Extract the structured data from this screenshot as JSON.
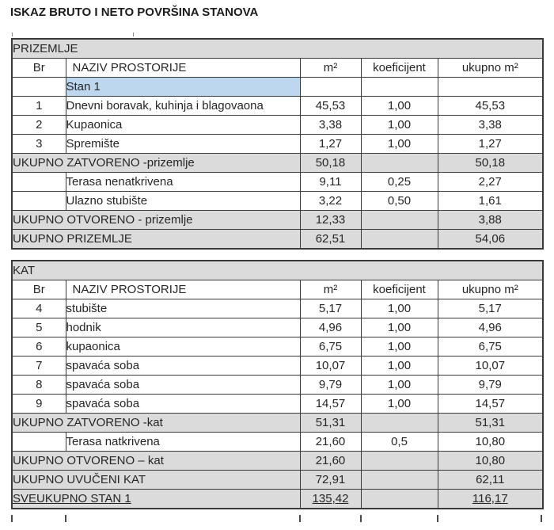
{
  "page_title": "ISKAZ BRUTO I NETO POVRŠINA STANOVA",
  "columns": [
    "Br",
    "NAZIV PROSTORIJE",
    "m²",
    "koeficijent",
    "ukupno m²"
  ],
  "colors": {
    "section_and_total_fill": "#dbdbdb",
    "highlight_fill": "#bdd7ee",
    "border": "#3a3a3a",
    "text": "#262626"
  },
  "tables": [
    {
      "section": "PRIZEMLJE",
      "rows": [
        {
          "type": "highlight",
          "br": "",
          "name": "Stan 1",
          "m2": "",
          "koef": "",
          "ukupno": ""
        },
        {
          "type": "item",
          "br": "1",
          "name": "Dnevni boravak, kuhinja i blagovaona",
          "m2": "45,53",
          "koef": "1,00",
          "ukupno": "45,53"
        },
        {
          "type": "item",
          "br": "2",
          "name": "Kupaonica",
          "m2": "3,38",
          "koef": "1,00",
          "ukupno": "3,38"
        },
        {
          "type": "item",
          "br": "3",
          "name": "Spremište",
          "m2": "1,27",
          "koef": "1,00",
          "ukupno": "1,27"
        },
        {
          "type": "total",
          "br": "",
          "name": "UKUPNO ZATVORENO -prizemlje",
          "m2": "50,18",
          "koef": "",
          "ukupno": "50,18"
        },
        {
          "type": "item",
          "br": "",
          "name": "Terasa nenatkrivena",
          "m2": "9,11",
          "koef": "0,25",
          "ukupno": "2,27"
        },
        {
          "type": "item",
          "br": "",
          "name": "Ulazno stubište",
          "m2": "3,22",
          "koef": "0,50",
          "ukupno": "1,61"
        },
        {
          "type": "total",
          "br": "",
          "name": "UKUPNO OTVORENO - prizemlje",
          "m2": "12,33",
          "koef": "",
          "ukupno": "3,88"
        },
        {
          "type": "total",
          "br": "",
          "name": "UKUPNO PRIZEMLJE",
          "m2": "62,51",
          "koef": "",
          "ukupno": "54,06"
        }
      ]
    },
    {
      "section": "KAT",
      "rows": [
        {
          "type": "item",
          "br": "4",
          "name": "stubište",
          "m2": "5,17",
          "koef": "1,00",
          "ukupno": "5,17"
        },
        {
          "type": "item",
          "br": "5",
          "name": "hodnik",
          "m2": "4,96",
          "koef": "1,00",
          "ukupno": "4,96"
        },
        {
          "type": "item",
          "br": "6",
          "name": "kupaonica",
          "m2": "6,75",
          "koef": "1,00",
          "ukupno": "6,75"
        },
        {
          "type": "item",
          "br": "7",
          "name": "spavaća soba",
          "m2": "10,07",
          "koef": "1,00",
          "ukupno": "10,07"
        },
        {
          "type": "item",
          "br": "8",
          "name": "spavaća soba",
          "m2": "9,79",
          "koef": "1,00",
          "ukupno": "9,79"
        },
        {
          "type": "item",
          "br": "9",
          "name": "spavaća soba",
          "m2": "14,57",
          "koef": "1,00",
          "ukupno": "14,57"
        },
        {
          "type": "total",
          "br": "",
          "name": "UKUPNO ZATVORENO -kat",
          "m2": "51,31",
          "koef": "",
          "ukupno": "51,31"
        },
        {
          "type": "item",
          "br": "",
          "name": "Terasa natkrivena",
          "m2": "21,60",
          "koef": "0,5",
          "ukupno": "10,80"
        },
        {
          "type": "total",
          "br": "",
          "name": "UKUPNO OTVORENO – kat",
          "m2": "21,60",
          "koef": "",
          "ukupno": "10,80"
        },
        {
          "type": "total",
          "br": "",
          "name": "UKUPNO UVUČENI KAT",
          "m2": "72,91",
          "koef": "",
          "ukupno": "62,11"
        },
        {
          "type": "grand",
          "br": "",
          "name": "SVEUKUPNO STAN 1",
          "m2": "135,42",
          "koef": "",
          "ukupno": "116,17"
        }
      ]
    }
  ]
}
